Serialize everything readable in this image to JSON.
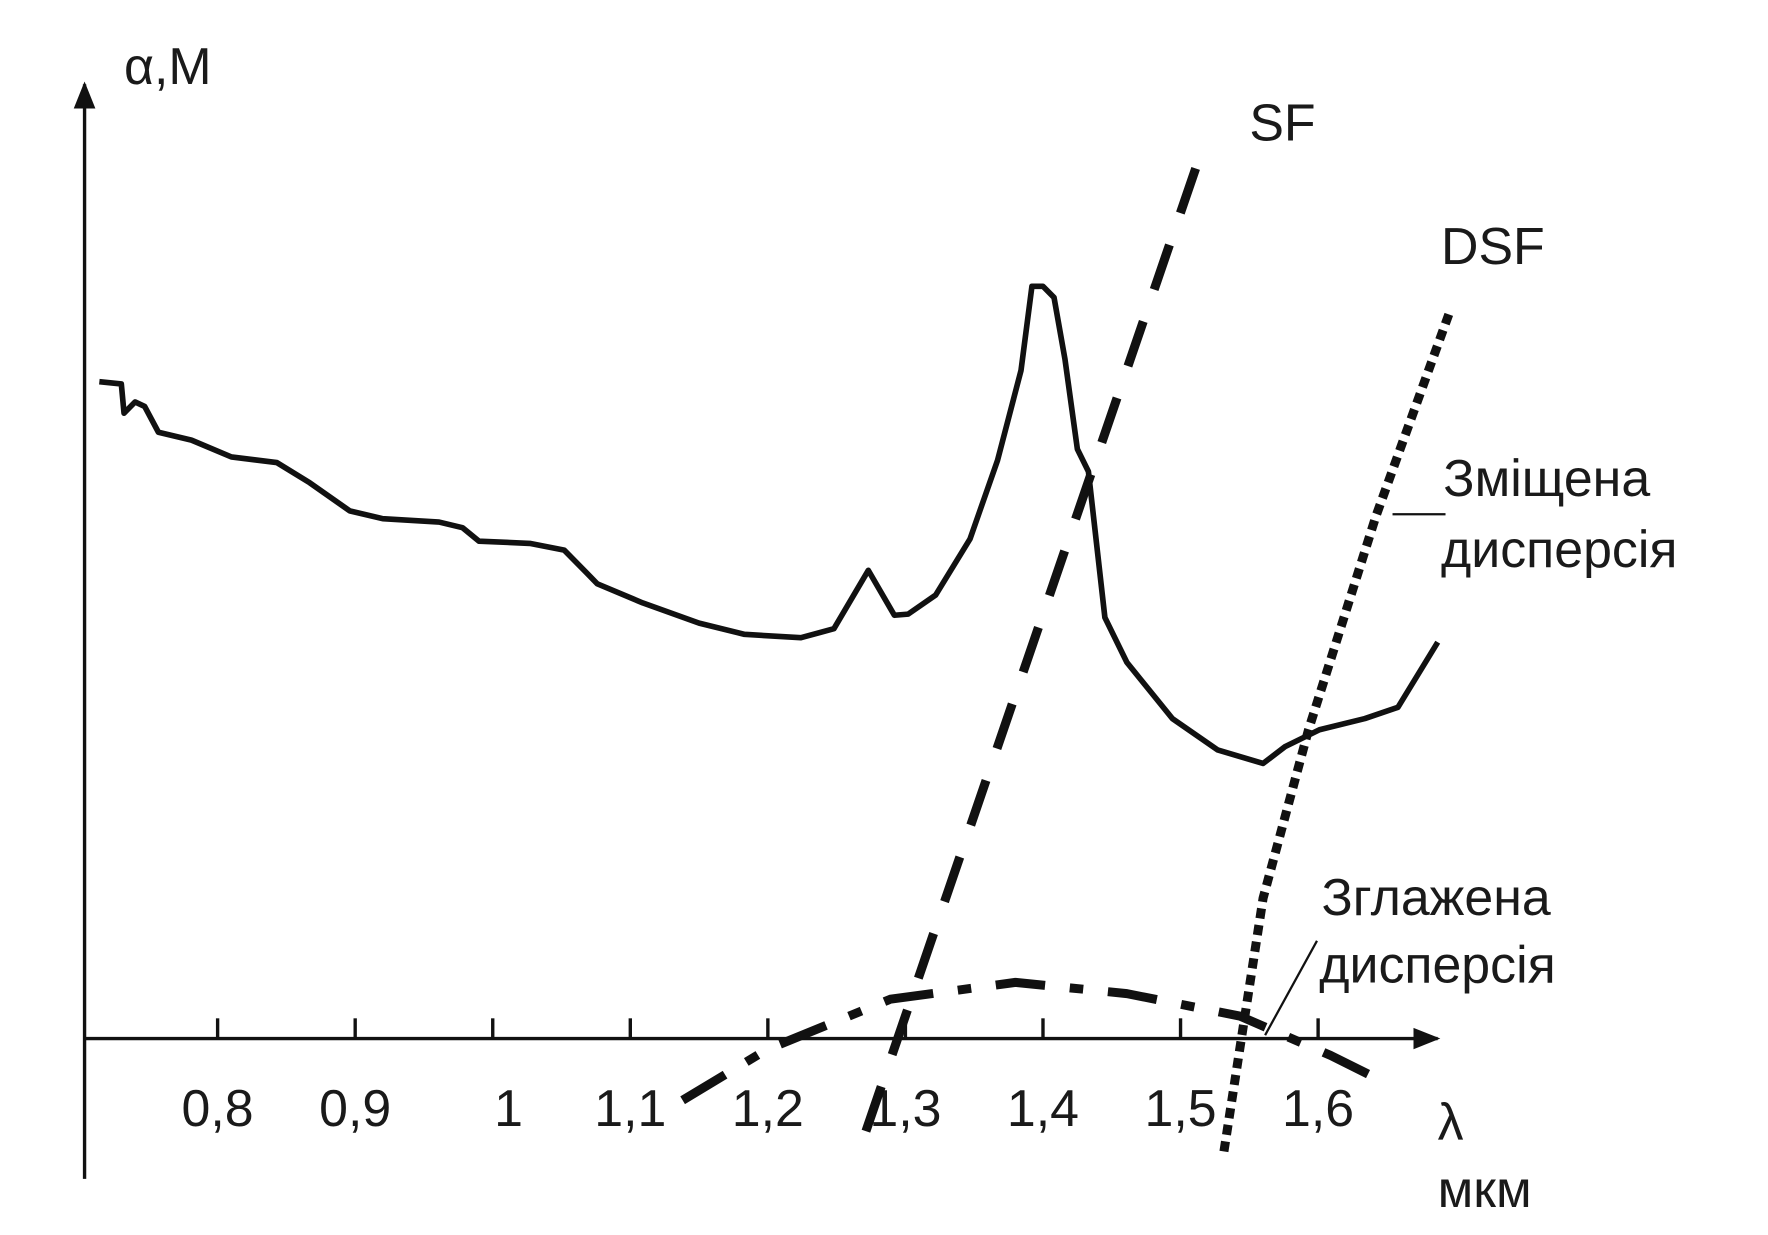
{
  "chart_data": {
    "type": "line",
    "y_label": "α,M",
    "x_label": [
      "λ",
      "мкм"
    ],
    "xlim": [
      0.7,
      1.7
    ],
    "ylim": [
      -1.25,
      8.5
    ],
    "xticks": [
      {
        "value": 0.8,
        "label": "0,8"
      },
      {
        "value": 0.9,
        "label": "0,9"
      },
      1,
      {
        "value": 1.1,
        "label": "1,1"
      },
      {
        "value": 1.2,
        "label": "1,2"
      },
      {
        "value": 1.3,
        "label": "1,3"
      },
      {
        "value": 1.4,
        "label": "1,4"
      },
      {
        "value": 1.5,
        "label": "1,5"
      },
      {
        "value": 1.6,
        "label": "1,6"
      }
    ],
    "series": [
      {
        "style": "solid",
        "color": "#111111",
        "x": [
          0.714,
          0.73,
          0.732,
          0.74,
          0.747,
          0.757,
          0.781,
          0.81,
          0.843,
          0.867,
          0.896,
          0.92,
          0.961,
          0.978,
          0.99,
          1.027,
          1.052,
          1.068,
          1.076,
          1.109,
          1.15,
          1.183,
          1.224,
          1.248,
          1.273,
          1.292,
          1.302,
          1.322,
          1.347,
          1.367,
          1.384,
          1.392,
          1.4,
          1.408,
          1.416,
          1.425,
          1.433,
          1.445,
          1.461,
          1.494,
          1.527,
          1.56,
          1.576,
          1.601,
          1.634,
          1.658,
          1.687
        ],
        "values": [
          5.85,
          5.83,
          5.57,
          5.67,
          5.63,
          5.4,
          5.33,
          5.18,
          5.13,
          4.95,
          4.7,
          4.63,
          4.6,
          4.55,
          4.43,
          4.41,
          4.35,
          4.15,
          4.05,
          3.88,
          3.7,
          3.6,
          3.57,
          3.65,
          4.17,
          3.77,
          3.78,
          3.95,
          4.45,
          5.15,
          5.95,
          6.7,
          6.7,
          6.6,
          6.05,
          5.25,
          5.05,
          3.75,
          3.35,
          2.85,
          2.57,
          2.45,
          2.6,
          2.75,
          2.85,
          2.95,
          3.53
        ]
      },
      {
        "name": "SF",
        "style": "dashed",
        "color": "#111111",
        "x": [
          1.511,
          1.265
        ],
        "values": [
          7.75,
          -1.05
        ]
      },
      {
        "name": "DSF",
        "style": "dotted",
        "color": "#111111",
        "x": [
          1.695,
          1.642,
          1.593,
          1.56,
          1.531
        ],
        "values": [
          6.45,
          4.65,
          2.75,
          1.25,
          -1.05
        ]
      },
      {
        "style": "dashdot",
        "color": "#111111",
        "x": [
          1.138,
          1.199,
          1.289,
          1.38,
          1.461,
          1.543,
          1.609,
          1.65
        ],
        "values": [
          -0.55,
          -0.1,
          0.35,
          0.5,
          0.4,
          0.2,
          -0.15,
          -0.4
        ]
      }
    ],
    "annotations": [
      {
        "lines": [
          "Зміщена",
          "дисперсія"
        ]
      },
      {
        "lines": [
          "Зглажена",
          "дисперсія"
        ]
      }
    ]
  }
}
